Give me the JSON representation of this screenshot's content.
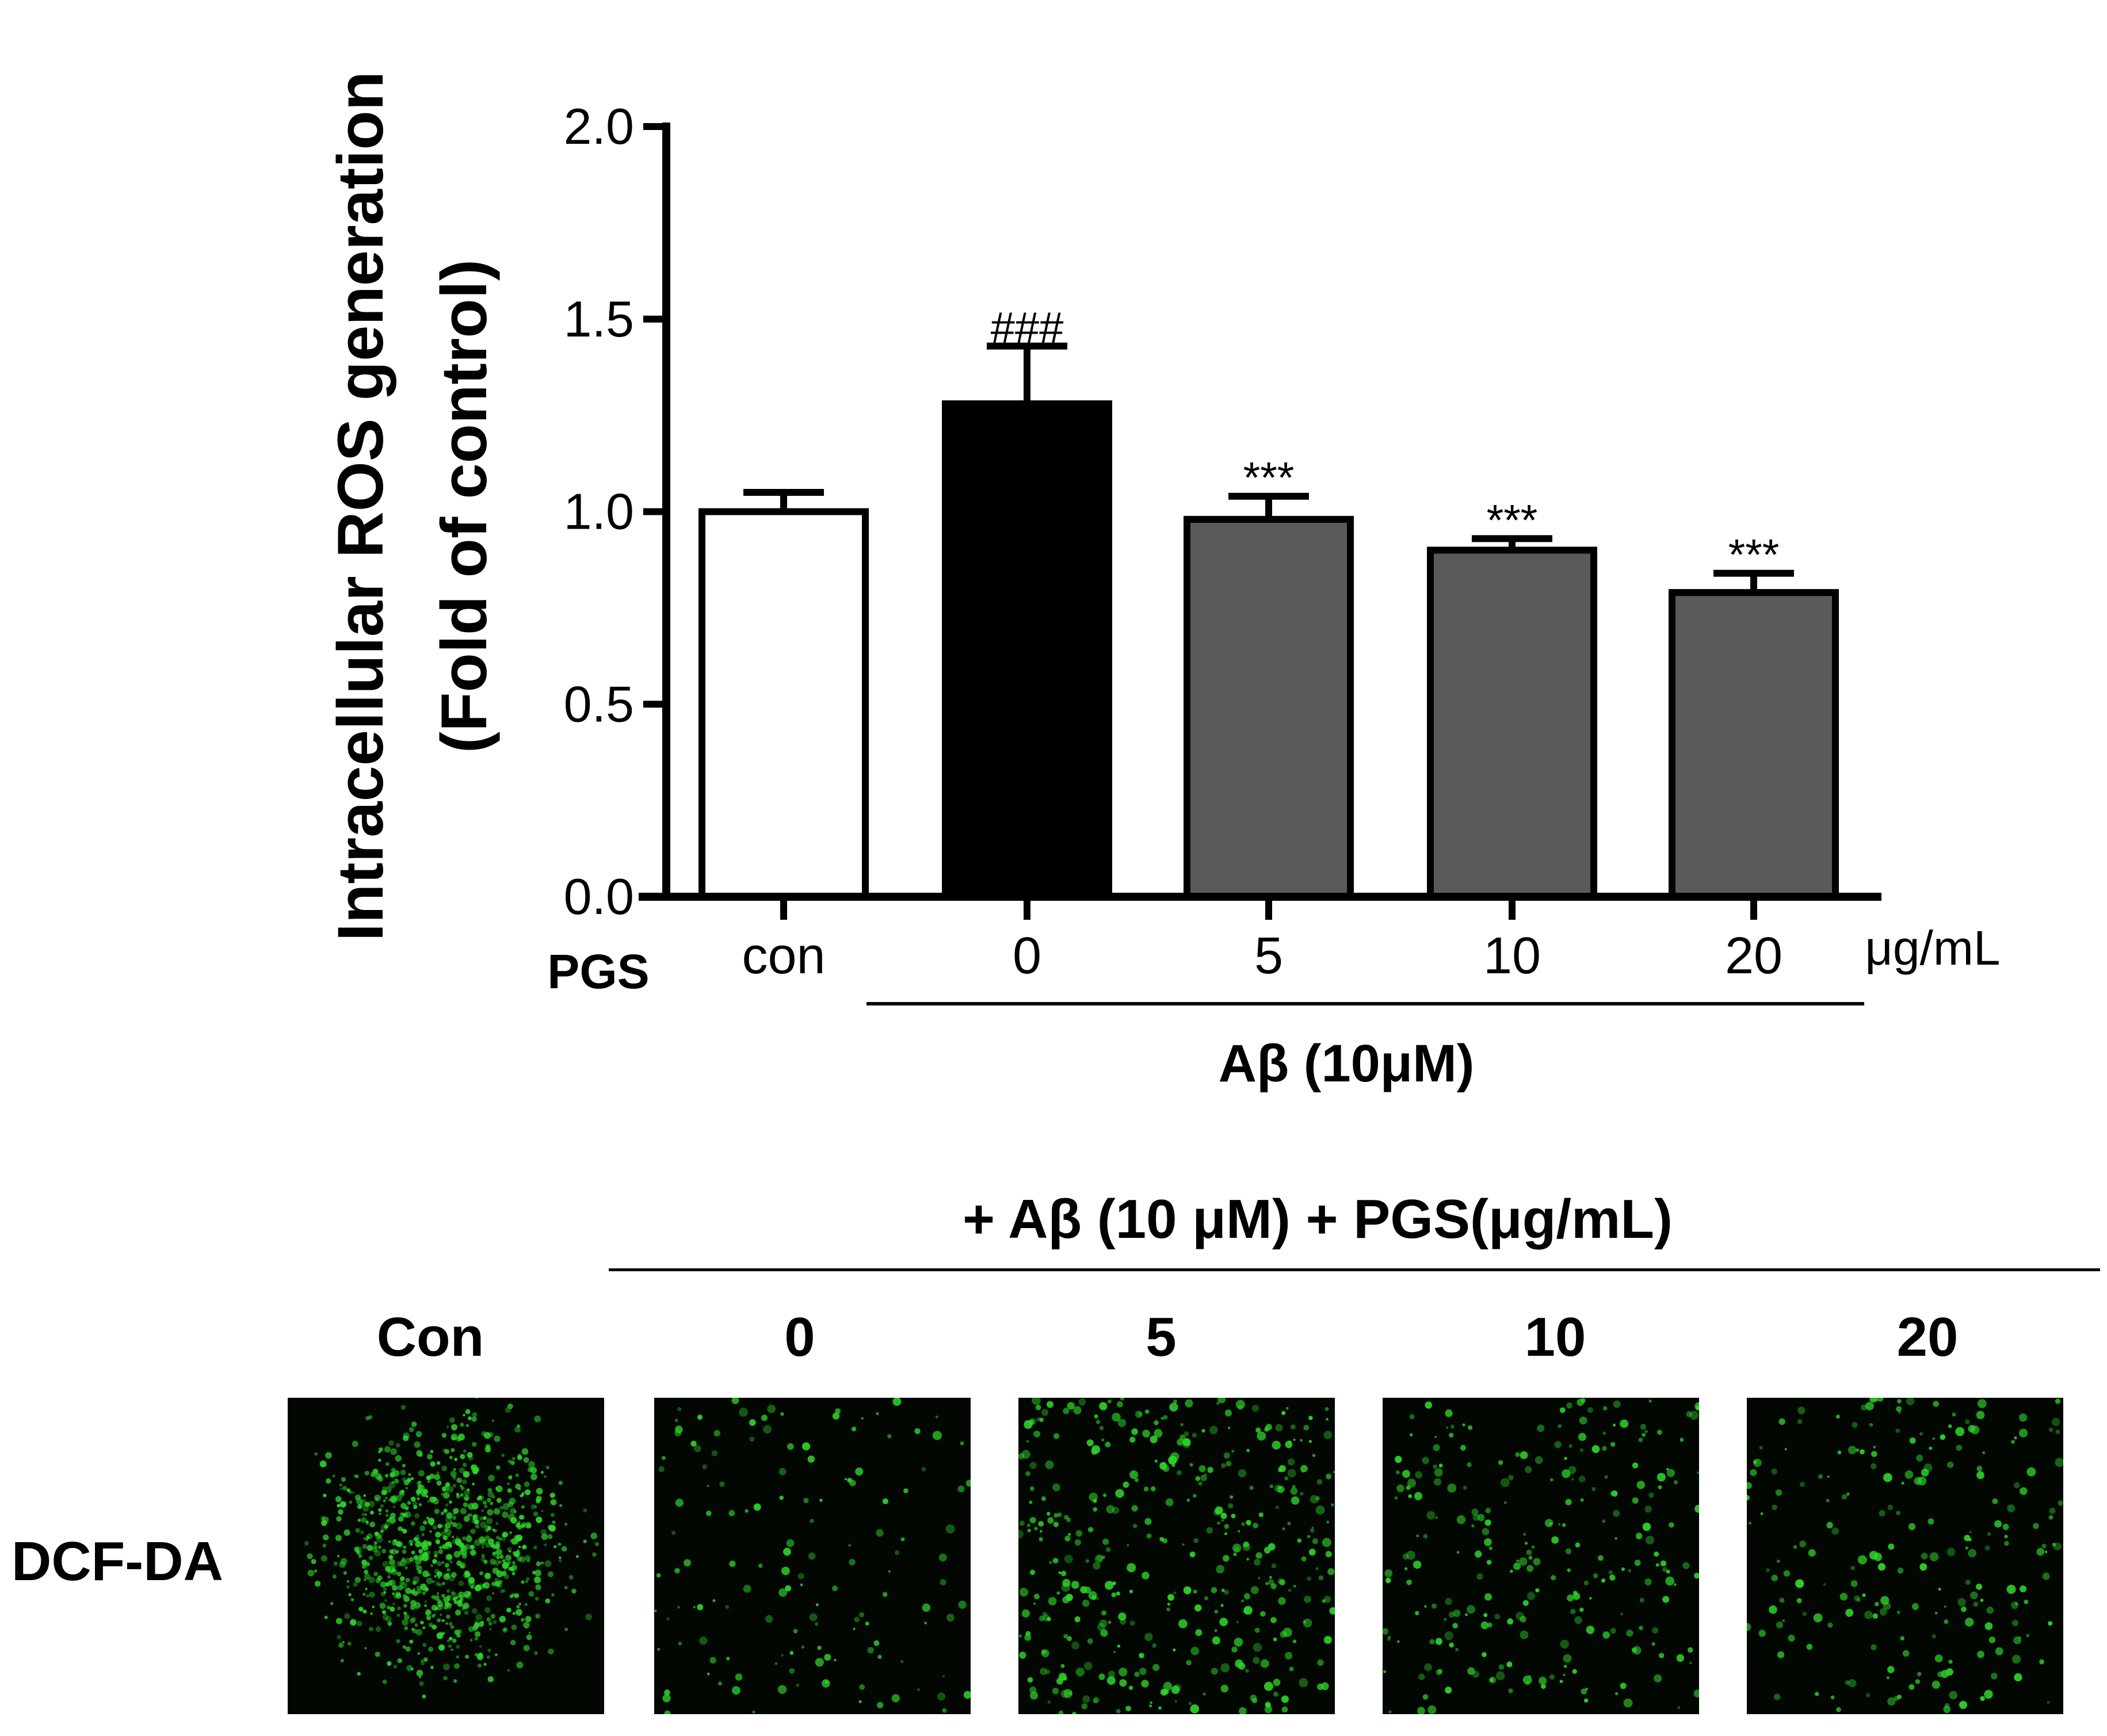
{
  "chart_data": {
    "type": "bar",
    "ylabel_line1": "Intracellular ROS generation",
    "ylabel_line2": "(Fold of control)",
    "yticks": [
      "0.0",
      "0.5",
      "1.0",
      "1.5",
      "2.0"
    ],
    "ylim": [
      0,
      2.0
    ],
    "xaxis_row_label": "PGS",
    "categories": [
      "con",
      "0",
      "5",
      "10",
      "20"
    ],
    "unit_label": "μg/mL",
    "group_label": "Aβ (10μM)",
    "values": [
      1.0,
      1.28,
      0.98,
      0.9,
      0.79
    ],
    "errors": [
      0.05,
      0.15,
      0.06,
      0.03,
      0.05
    ],
    "significance": [
      "",
      "###",
      "***",
      "***",
      "***"
    ],
    "bar_fills": [
      "#ffffff",
      "#000000",
      "#5a5a5a",
      "#5a5a5a",
      "#5a5a5a"
    ],
    "grid": false,
    "legend": "none"
  },
  "images": {
    "treatment_header": "+ Aβ (10 μM) + PGS(μg/mL)",
    "row_label": "DCF-DA",
    "column_labels": [
      "Con",
      "0",
      "5",
      "10",
      "20"
    ],
    "fluorescence_color": "#2fd62a"
  }
}
